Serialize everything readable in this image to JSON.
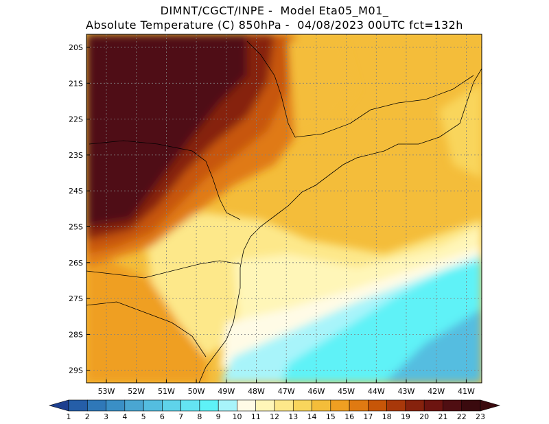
{
  "title": {
    "line1": "DIMNT/CGCT/INPE -  Model Eta05_M01_",
    "line2": "Absolute Temperature (C) 850hPa -  04/08/2023 00UTC fct=132h"
  },
  "map": {
    "lat_labels": [
      "20S",
      "21S",
      "22S",
      "23S",
      "24S",
      "25S",
      "26S",
      "27S",
      "28S",
      "29S"
    ],
    "lon_labels": [
      "53W",
      "52W",
      "51W",
      "50W",
      "49W",
      "48W",
      "47W",
      "46W",
      "45W",
      "44W",
      "43W",
      "42W",
      "41W"
    ],
    "gridlines": "dotted"
  },
  "colorbar": {
    "labels": [
      "1",
      "2",
      "3",
      "4",
      "5",
      "6",
      "7",
      "8",
      "9",
      "10",
      "11",
      "12",
      "13",
      "14",
      "15",
      "16",
      "17",
      "18",
      "19",
      "20",
      "21",
      "22",
      "23"
    ],
    "colors": [
      "#1d3f8f",
      "#255ea8",
      "#2f78b8",
      "#3a8fc6",
      "#4aa6d2",
      "#54bde0",
      "#5fd3ea",
      "#64e4f2",
      "#5ef2f7",
      "#a8f4fa",
      "#fffbe6",
      "#fff6b8",
      "#fde88a",
      "#f9d55c",
      "#f4bd3a",
      "#ef9f22",
      "#e07a12",
      "#c75608",
      "#a8380a",
      "#86220d",
      "#6d1410",
      "#4f0e12",
      "#3a0a0e"
    ],
    "under_color": "#1d3f8f",
    "over_color": "#3a0a0e"
  }
}
